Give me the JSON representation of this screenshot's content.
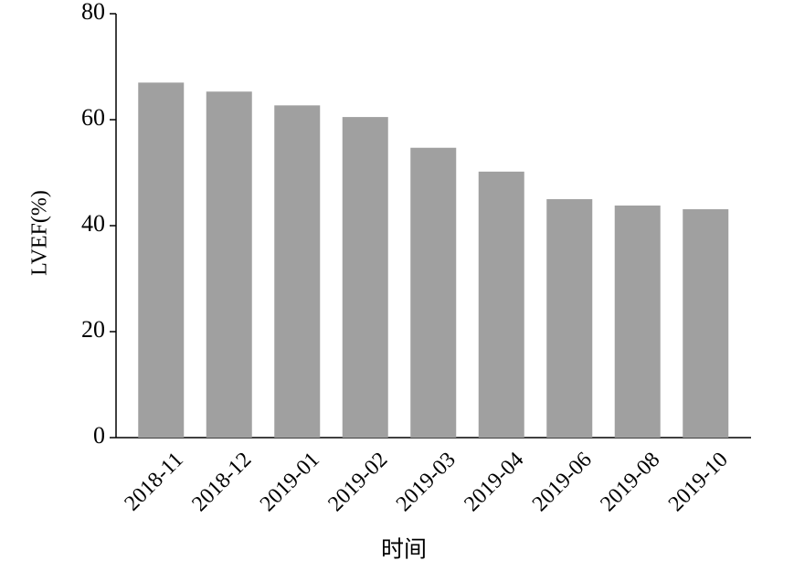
{
  "chart_data": {
    "type": "bar",
    "categories": [
      "2018-11",
      "2018-12",
      "2019-01",
      "2019-02",
      "2019-03",
      "2019-04",
      "2019-06",
      "2019-08",
      "2019-10"
    ],
    "values": [
      67,
      65.3,
      62.7,
      60.5,
      54.7,
      50.2,
      45,
      43.8,
      43.1
    ],
    "color": "#a0a0a0",
    "ylim": [
      0,
      80
    ],
    "yticks": [
      0,
      20,
      40,
      60,
      80
    ],
    "ylabel": "LVEF(%)",
    "xlabel": "时间",
    "grid": false
  }
}
